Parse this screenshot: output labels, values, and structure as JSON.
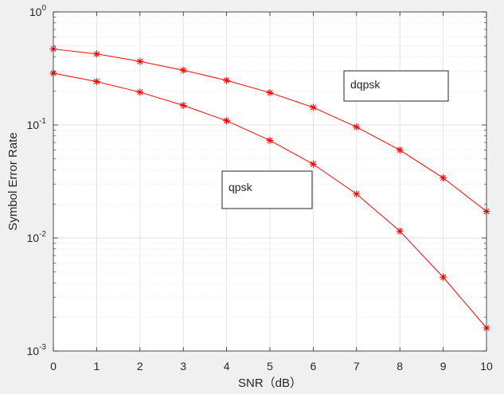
{
  "chart_data": {
    "type": "line",
    "title": "",
    "xlabel": "SNR（dB）",
    "ylabel": "Symbol Error Rate",
    "x": [
      0,
      1,
      2,
      3,
      4,
      5,
      6,
      7,
      8,
      9,
      10
    ],
    "xlim": [
      0,
      10
    ],
    "ylim": [
      0.001,
      1
    ],
    "yscale": "log",
    "grid": true,
    "minor_grid": true,
    "x_ticks": [
      "0",
      "1",
      "2",
      "3",
      "4",
      "5",
      "6",
      "7",
      "8",
      "9",
      "10"
    ],
    "y_ticks": [
      {
        "base": "10",
        "exp": "-3",
        "value": 0.001
      },
      {
        "base": "10",
        "exp": "-2",
        "value": 0.01
      },
      {
        "base": "10",
        "exp": "-1",
        "value": 0.1
      },
      {
        "base": "10",
        "exp": "0",
        "value": 1
      }
    ],
    "series": [
      {
        "name": "dqpsk",
        "color": "#ff0000",
        "marker": "asterisk",
        "values": [
          0.47,
          0.425,
          0.365,
          0.305,
          0.248,
          0.193,
          0.143,
          0.096,
          0.06,
          0.034,
          0.0172
        ]
      },
      {
        "name": "qpsk",
        "color": "#ff0000",
        "marker": "asterisk",
        "values": [
          0.287,
          0.242,
          0.195,
          0.149,
          0.109,
          0.073,
          0.045,
          0.0245,
          0.0115,
          0.0045,
          0.0016
        ]
      }
    ],
    "annotations": [
      {
        "text": "dqpsk",
        "series": "dqpsk"
      },
      {
        "text": "qpsk",
        "series": "qpsk"
      }
    ],
    "colors": {
      "figure_background": "#f0f0f0",
      "axes_background": "#ffffff",
      "grid": "#d9d9d9",
      "axis": "#262626",
      "line": "#ff0000"
    }
  }
}
